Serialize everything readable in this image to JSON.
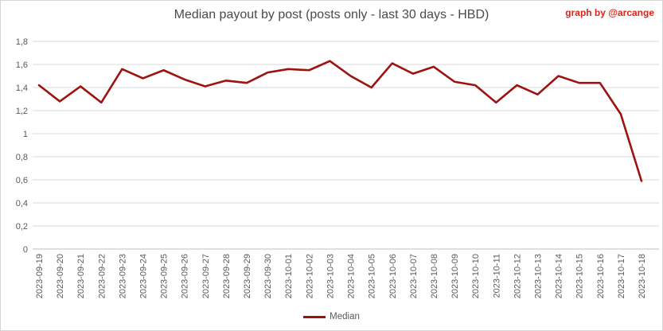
{
  "title": "Median payout by post (posts only - last 30 days - HBD)",
  "credit": "graph by @arcange",
  "legend": {
    "label": "Median"
  },
  "colors": {
    "line": "#9c1310",
    "credit": "#d9251b",
    "title_text": "#4a4a4a",
    "axis_text": "#595959",
    "gridline": "#d9d9d9",
    "axis_line": "#bfbfbf"
  },
  "chart_data": {
    "type": "line",
    "title": "Median payout by post (posts only - last 30 days - HBD)",
    "x": [
      "2023-09-19",
      "2023-09-20",
      "2023-09-21",
      "2023-09-22",
      "2023-09-23",
      "2023-09-24",
      "2023-09-25",
      "2023-09-26",
      "2023-09-27",
      "2023-09-28",
      "2023-09-29",
      "2023-09-30",
      "2023-10-01",
      "2023-10-02",
      "2023-10-03",
      "2023-10-04",
      "2023-10-05",
      "2023-10-06",
      "2023-10-07",
      "2023-10-08",
      "2023-10-09",
      "2023-10-10",
      "2023-10-11",
      "2023-10-12",
      "2023-10-13",
      "2023-10-14",
      "2023-10-15",
      "2023-10-16",
      "2023-10-17",
      "2023-10-18"
    ],
    "series": [
      {
        "name": "Median",
        "values": [
          1.42,
          1.28,
          1.41,
          1.27,
          1.56,
          1.48,
          1.55,
          1.47,
          1.41,
          1.46,
          1.44,
          1.53,
          1.56,
          1.55,
          1.63,
          1.5,
          1.4,
          1.61,
          1.52,
          1.58,
          1.45,
          1.42,
          1.27,
          1.42,
          1.34,
          1.5,
          1.44,
          1.44,
          1.17,
          0.59
        ]
      }
    ],
    "xlabel": "",
    "ylabel": "",
    "ylim": [
      0,
      1.8
    ],
    "ytick_step": 0.2,
    "ytick_labels": [
      "1,8",
      "1,6",
      "1,4",
      "1,2",
      "1",
      "0,8",
      "0,6",
      "0,4",
      "0,2",
      "0"
    ],
    "grid": true,
    "legend_position": "bottom-center",
    "decimal_separator": ","
  }
}
